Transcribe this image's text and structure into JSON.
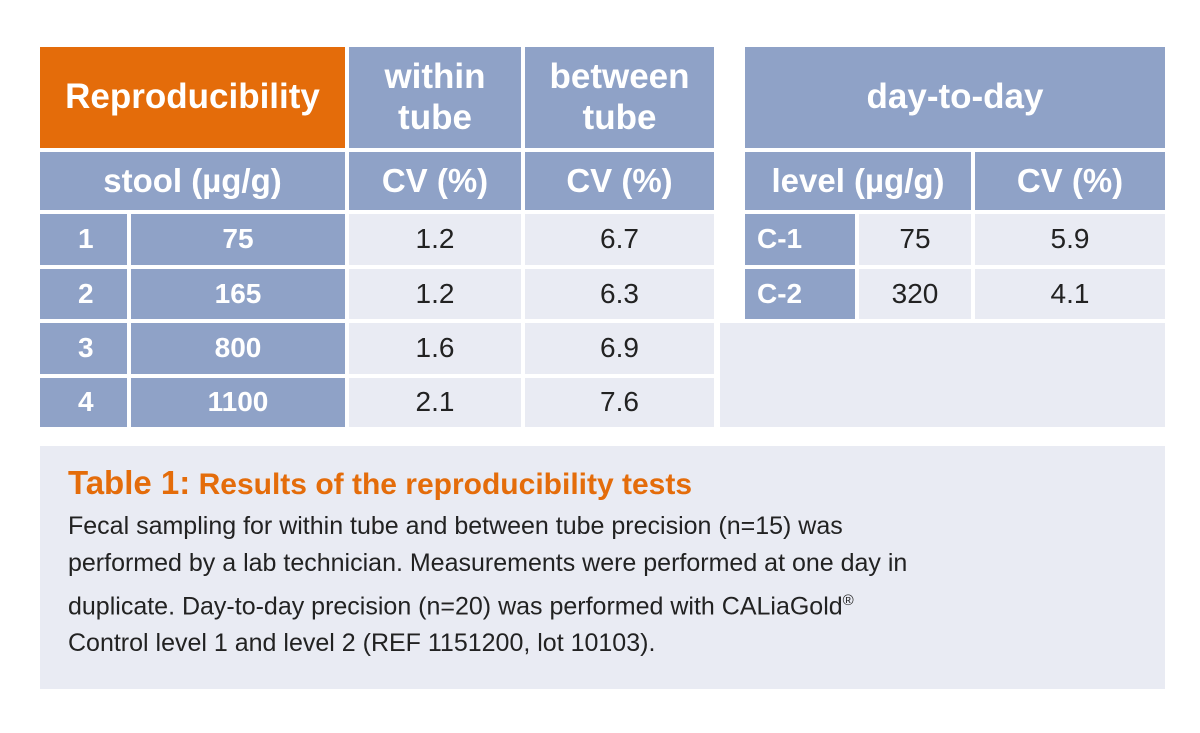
{
  "header": {
    "reproducibility": "Reproducibility",
    "within_line1": "within",
    "within_line2": "tube",
    "between_line1": "between",
    "between_line2": "tube",
    "day_to_day": "day-to-day"
  },
  "subheader": {
    "stool": "stool (µg/g)",
    "cv_within": "CV (%)",
    "cv_between": "CV (%)",
    "level": "level (µg/g)",
    "cv_day": "CV (%)"
  },
  "samples": [
    {
      "id": "1",
      "stool": "75",
      "within_cv": "1.2",
      "between_cv": "6.7"
    },
    {
      "id": "2",
      "stool": "165",
      "within_cv": "1.2",
      "between_cv": "6.3"
    },
    {
      "id": "3",
      "stool": "800",
      "within_cv": "1.6",
      "between_cv": "6.9"
    },
    {
      "id": "4",
      "stool": "1100",
      "within_cv": "2.1",
      "between_cv": "7.6"
    }
  ],
  "controls": [
    {
      "name": "C-1",
      "level": "75",
      "cv": "5.9"
    },
    {
      "name": "C-2",
      "level": "320",
      "cv": "4.1"
    }
  ],
  "caption": {
    "table_label": "Table 1:",
    "title": "Results of the reproducibility tests",
    "line1": "Fecal sampling for within tube and between tube precision (n=15) was",
    "line2": "performed by a lab technician. Measurements were performed at one day in",
    "line3_a": "duplicate. Day-to-day precision (n=20) was performed with CALiaGold",
    "line3_reg": "®",
    "line4": "Control level 1 and level 2 (REF 1151200, lot 10103)."
  },
  "colors": {
    "accent_orange": "#e46c0a",
    "header_blue": "#8fa2c7",
    "cell_light": "#e9ebf3"
  }
}
